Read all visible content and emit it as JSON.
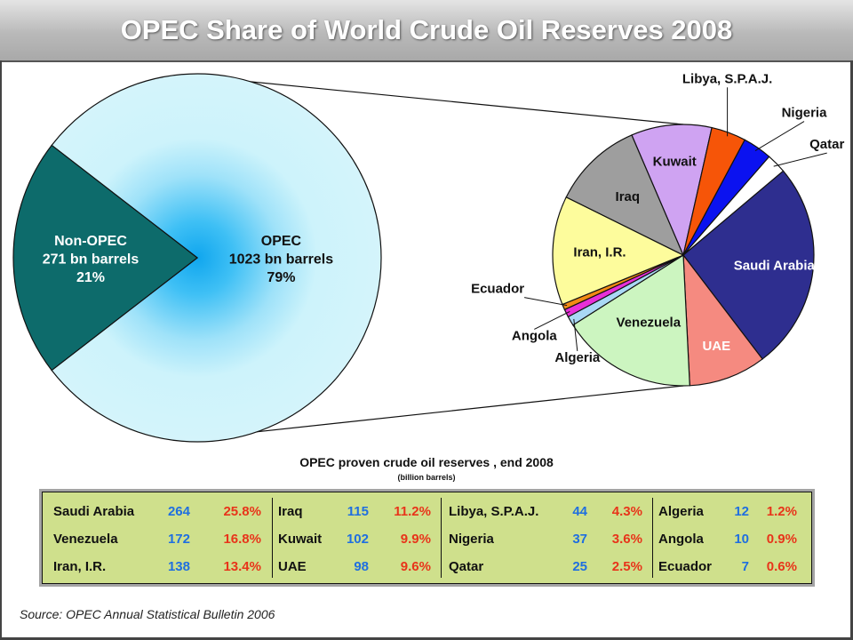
{
  "title": "OPEC Share of World Crude Oil Reserves 2008",
  "chart_data": [
    {
      "type": "pie",
      "slices": [
        {
          "lines": [
            "OPEC",
            "1023 bn barrels",
            "79%"
          ],
          "value": 1023,
          "percent": 79,
          "color": "#cdf3fb"
        },
        {
          "lines": [
            "Non-OPEC",
            "271 bn barrels",
            "21%"
          ],
          "value": 271,
          "percent": 21,
          "color": "#0d6b6b"
        }
      ]
    },
    {
      "type": "pie",
      "slices": [
        {
          "label": "Saudi Arabia",
          "value": 264,
          "color": "#2e2e8f",
          "text_color": "#ffffff"
        },
        {
          "label": "UAE",
          "value": 98,
          "color": "#f58a80",
          "text_color": "#ffffff"
        },
        {
          "label": "Venezuela",
          "value": 172,
          "color": "#ccf5c0",
          "text_color": "#111111"
        },
        {
          "label": "Algeria",
          "value": 12,
          "color": "#a9d8f5",
          "text_color": "#111111"
        },
        {
          "label": "Angola",
          "value": 10,
          "color": "#e830d8",
          "text_color": "#111111"
        },
        {
          "label": "Ecuador",
          "value": 7,
          "color": "#f28a14",
          "text_color": "#111111"
        },
        {
          "label": "Iran, I.R.",
          "value": 138,
          "color": "#fdfc9c",
          "text_color": "#111111"
        },
        {
          "label": "Iraq",
          "value": 115,
          "color": "#9e9e9e",
          "text_color": "#111111"
        },
        {
          "label": "Kuwait",
          "value": 102,
          "color": "#cfa3f2",
          "text_color": "#111111"
        },
        {
          "label": "Libya, S.P.A.J.",
          "value": 44,
          "color": "#f65508",
          "text_color": "#111111"
        },
        {
          "label": "Nigeria",
          "value": 37,
          "color": "#0b12f0",
          "text_color": "#111111"
        },
        {
          "label": "Qatar",
          "value": 25,
          "color": "#ffffff",
          "text_color": "#111111"
        }
      ]
    }
  ],
  "table": {
    "title": "OPEC proven crude oil reserves , end 2008",
    "subtitle": "(billion barrels)",
    "columns": [
      [
        {
          "country": "Saudi Arabia",
          "reserves": "264",
          "share": "25.8%"
        },
        {
          "country": "Venezuela",
          "reserves": "172",
          "share": "16.8%"
        },
        {
          "country": "Iran, I.R.",
          "reserves": "138",
          "share": "13.4%"
        }
      ],
      [
        {
          "country": "Iraq",
          "reserves": "115",
          "share": "11.2%"
        },
        {
          "country": "Kuwait",
          "reserves": "102",
          "share": "9.9%"
        },
        {
          "country": "UAE",
          "reserves": "98",
          "share": "9.6%"
        }
      ],
      [
        {
          "country": "Libya, S.P.A.J.",
          "reserves": "44",
          "share": "4.3%"
        },
        {
          "country": "Nigeria",
          "reserves": "37",
          "share": "3.6%"
        },
        {
          "country": "Qatar",
          "reserves": "25",
          "share": "2.5%"
        }
      ],
      [
        {
          "country": "Algeria",
          "reserves": "12",
          "share": "1.2%"
        },
        {
          "country": "Angola",
          "reserves": "10",
          "share": "0.9%"
        },
        {
          "country": "Ecuador",
          "reserves": "7",
          "share": "0.6%"
        }
      ]
    ]
  },
  "source": "Source:  OPEC Annual Statistical Bulletin 2006"
}
